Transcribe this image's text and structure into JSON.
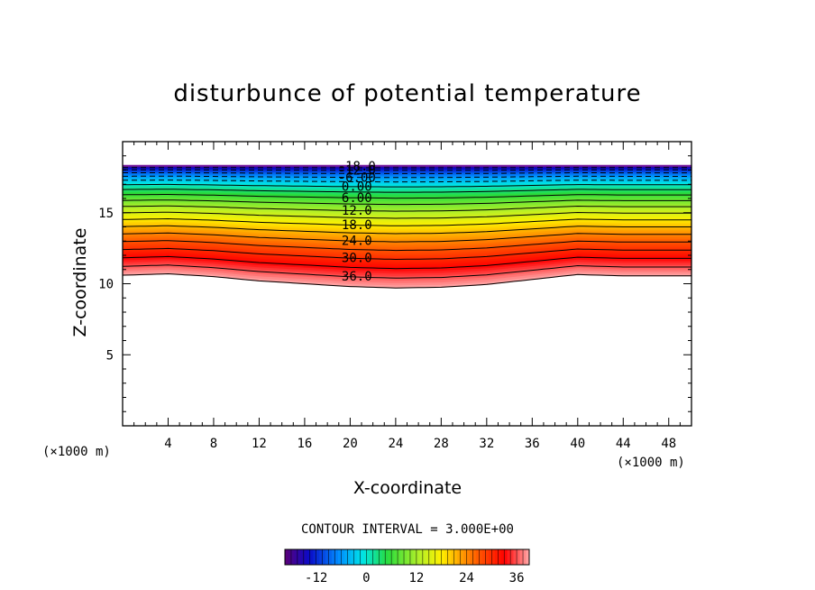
{
  "chart_data": {
    "type": "contour",
    "title": "disturbunce of potential temperature",
    "xlabel": "X-coordinate",
    "ylabel": "Z-coordinate",
    "x_unit": "(×1000 m)",
    "y_unit": "(×1000 m)",
    "xlim": [
      0,
      50
    ],
    "ylim": [
      0,
      20
    ],
    "x_ticks": [
      4,
      8,
      12,
      16,
      20,
      24,
      28,
      32,
      36,
      40,
      44,
      48
    ],
    "y_ticks": [
      5,
      10,
      15
    ],
    "contour_interval_text": "CONTOUR INTERVAL = 3.000E+00",
    "contour_interval": 3,
    "value_range": [
      -19.5,
      39
    ],
    "contour_labels": [
      "-18.0",
      "-12.0",
      "-6.00",
      "0.00",
      "6.00",
      "12.0",
      "18.0",
      "24.0",
      "30.0",
      "36.0"
    ],
    "field_bottom_z": [
      [
        0,
        10.6
      ],
      [
        4,
        10.7
      ],
      [
        8,
        10.5
      ],
      [
        12,
        10.2
      ],
      [
        16,
        10.0
      ],
      [
        20,
        9.8
      ],
      [
        24,
        9.7
      ],
      [
        28,
        9.75
      ],
      [
        32,
        9.95
      ],
      [
        36,
        10.3
      ],
      [
        40,
        10.65
      ],
      [
        44,
        10.55
      ],
      [
        48,
        10.55
      ],
      [
        50,
        10.55
      ]
    ],
    "field_top_z": 18.3,
    "colorbar_ticks": [
      "-12",
      "0",
      "12",
      "24",
      "36"
    ],
    "colorbar_tick_values": [
      -12,
      0,
      12,
      24,
      36
    ],
    "colormap": "rainbow (purple → blue → cyan → green → yellow → orange → red → pink)",
    "negative_contours": "dashed",
    "label_x": 19
  }
}
